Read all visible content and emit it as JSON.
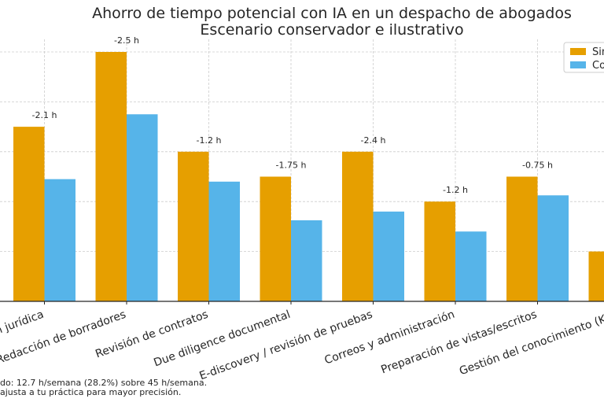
{
  "chart_data": {
    "type": "bar",
    "title": "Ahorro de tiempo potencial con IA en un despacho de abogados",
    "subtitle": "Escenario conservador e ilustrativo",
    "categories": [
      "Investigación jurídica",
      "Redacción de borradores",
      "Revisión de contratos",
      "Due diligence documental",
      "E-discovery / revisión de pruebas",
      "Correos y administración",
      "Preparación de vistas/escritos",
      "Gestión del conocimiento (KM)"
    ],
    "series": [
      {
        "name": "Sin IA",
        "color": "#E69F00",
        "values": [
          7,
          10,
          6,
          5,
          6,
          4,
          5,
          2
        ]
      },
      {
        "name": "Con IA",
        "color": "#56B4E9",
        "values": [
          4.9,
          7.5,
          4.8,
          3.25,
          3.6,
          2.8,
          4.25,
          null
        ]
      }
    ],
    "data_labels": [
      "-2.1 h",
      "-2.5 h",
      "-1.2 h",
      "-1.75 h",
      "-2.4 h",
      "-1.2 h",
      "-0.75 h",
      ""
    ],
    "ylim": [
      0,
      10.5
    ],
    "grid": true,
    "legend_position": "top-right",
    "xlabel": "",
    "ylabel": ""
  },
  "footnote": {
    "line1": "do: 12.7 h/semana (28.2%) sobre 45 h/semana.",
    "line2": "ajusta a tu práctica para mayor precisión."
  }
}
